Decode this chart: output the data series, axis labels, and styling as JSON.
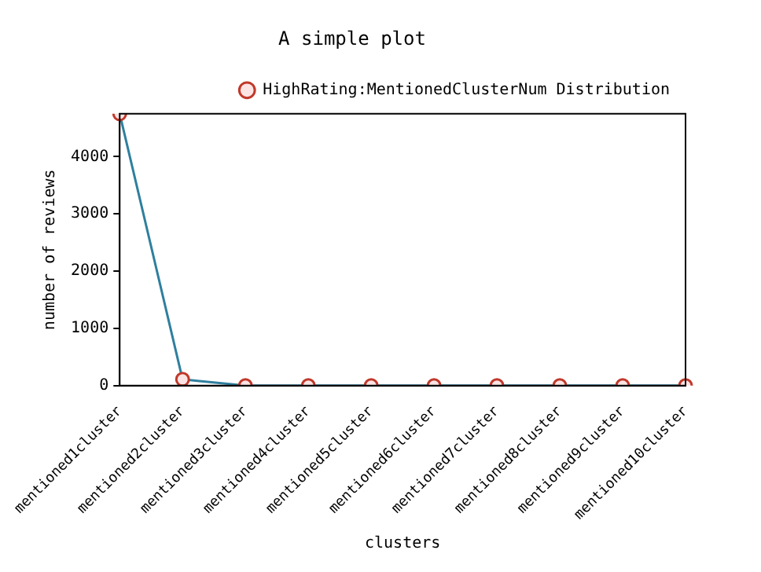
{
  "chart_data": {
    "type": "line",
    "title": "A simple plot",
    "xlabel": "clusters",
    "ylabel": "number of reviews",
    "categories": [
      "mentioned1cluster",
      "mentioned2cluster",
      "mentioned3cluster",
      "mentioned4cluster",
      "mentioned5cluster",
      "mentioned6cluster",
      "mentioned7cluster",
      "mentioned8cluster",
      "mentioned9cluster",
      "mentioned10cluster"
    ],
    "series": [
      {
        "name": "HighRating:MentionedClusterNum Distribution",
        "color": "#2f7f9e",
        "values": [
          4750,
          110,
          0,
          0,
          0,
          0,
          0,
          0,
          0,
          0
        ]
      }
    ],
    "ylim": [
      0,
      4750
    ],
    "yticks": [
      0,
      1000,
      2000,
      3000,
      4000
    ],
    "grid": false,
    "legend": "top right",
    "marker": "circle",
    "line_style": "solid"
  }
}
